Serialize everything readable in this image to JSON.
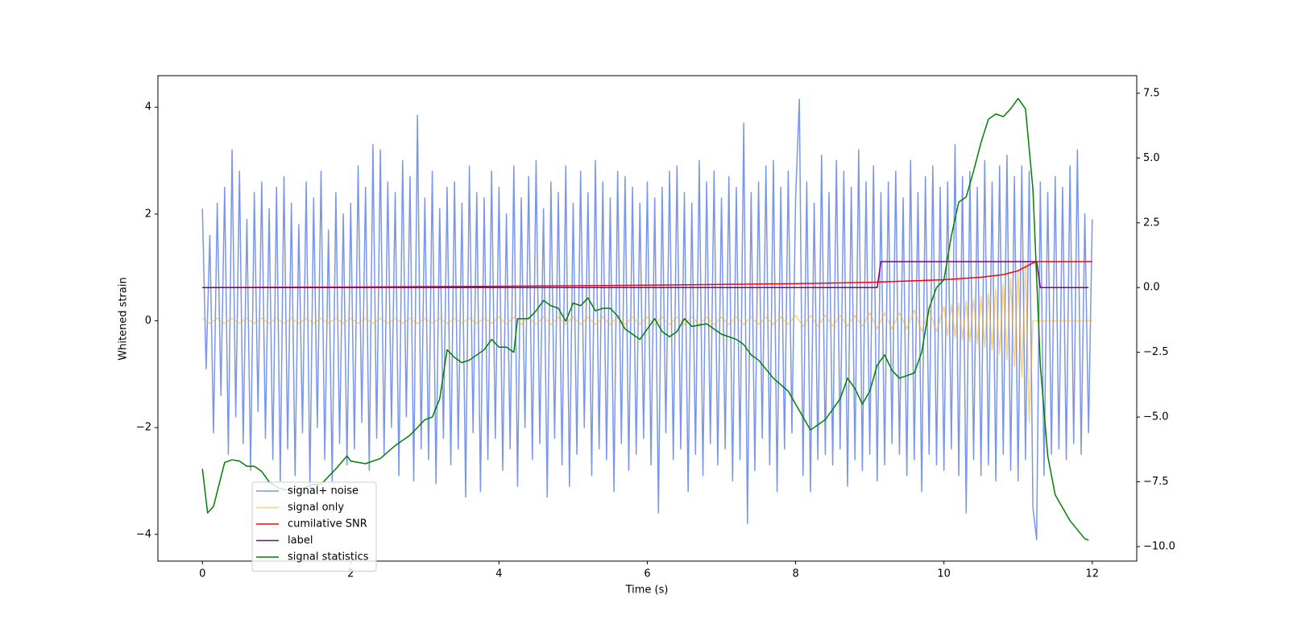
{
  "chart_data": {
    "type": "line",
    "xlabel": "Time (s)",
    "ylabel": "Whitened strain",
    "xlim": [
      -0.6,
      12.6
    ],
    "ylim": [
      -4.5,
      4.59
    ],
    "y2lim": [
      -10.56,
      8.18
    ],
    "xticks": [
      0,
      2,
      4,
      6,
      8,
      10,
      12
    ],
    "yticks": [
      {
        "value": -4,
        "label": "−4"
      },
      {
        "value": -2,
        "label": "−2"
      },
      0,
      2,
      4
    ],
    "y2ticks": [
      {
        "value": -10,
        "label": "−10.0"
      },
      {
        "value": -7.5,
        "label": "−7.5"
      },
      {
        "value": -5,
        "label": "−5.0"
      },
      {
        "value": -2.5,
        "label": "−2.5"
      },
      {
        "value": 0,
        "label": "0.0"
      },
      2.5,
      {
        "value": 5,
        "label": "5.0"
      },
      7.5
    ],
    "grid": false,
    "legend": "lower left",
    "series": [
      {
        "name": "signal+ noise",
        "color": "royalblue",
        "alpha": 0.7,
        "axis": "y",
        "x": [
          0,
          0.05,
          0.1,
          0.15,
          0.2,
          0.25,
          0.3,
          0.35,
          0.4,
          0.45,
          0.5,
          0.55,
          0.6,
          0.65,
          0.7,
          0.75,
          0.8,
          0.85,
          0.9,
          0.95,
          1,
          1.05,
          1.1,
          1.15,
          1.2,
          1.25,
          1.3,
          1.35,
          1.4,
          1.45,
          1.5,
          1.55,
          1.6,
          1.65,
          1.7,
          1.75,
          1.8,
          1.85,
          1.9,
          1.95,
          2,
          2.05,
          2.1,
          2.15,
          2.2,
          2.25,
          2.3,
          2.35,
          2.4,
          2.45,
          2.5,
          2.55,
          2.6,
          2.65,
          2.7,
          2.75,
          2.8,
          2.85,
          2.9,
          2.95,
          3,
          3.05,
          3.1,
          3.15,
          3.2,
          3.25,
          3.3,
          3.35,
          3.4,
          3.45,
          3.5,
          3.55,
          3.6,
          3.65,
          3.7,
          3.75,
          3.8,
          3.85,
          3.9,
          3.95,
          4,
          4.05,
          4.1,
          4.15,
          4.2,
          4.25,
          4.3,
          4.35,
          4.4,
          4.45,
          4.5,
          4.55,
          4.6,
          4.65,
          4.7,
          4.75,
          4.8,
          4.85,
          4.9,
          4.95,
          5,
          5.05,
          5.1,
          5.15,
          5.2,
          5.25,
          5.3,
          5.35,
          5.4,
          5.45,
          5.5,
          5.55,
          5.6,
          5.65,
          5.7,
          5.75,
          5.8,
          5.85,
          5.9,
          5.95,
          6,
          6.05,
          6.1,
          6.15,
          6.2,
          6.25,
          6.3,
          6.35,
          6.4,
          6.45,
          6.5,
          6.55,
          6.6,
          6.65,
          6.7,
          6.75,
          6.8,
          6.85,
          6.9,
          6.95,
          7,
          7.05,
          7.1,
          7.15,
          7.2,
          7.25,
          7.3,
          7.35,
          7.4,
          7.45,
          7.5,
          7.55,
          7.6,
          7.65,
          7.7,
          7.75,
          7.8,
          7.85,
          7.9,
          7.95,
          8,
          8.05,
          8.1,
          8.15,
          8.2,
          8.25,
          8.3,
          8.35,
          8.4,
          8.45,
          8.5,
          8.55,
          8.6,
          8.65,
          8.7,
          8.75,
          8.8,
          8.85,
          8.9,
          8.95,
          9,
          9.05,
          9.1,
          9.15,
          9.2,
          9.25,
          9.3,
          9.35,
          9.4,
          9.45,
          9.5,
          9.55,
          9.6,
          9.65,
          9.7,
          9.75,
          9.8,
          9.85,
          9.9,
          9.95,
          10,
          10.05,
          10.1,
          10.15,
          10.2,
          10.25,
          10.3,
          10.35,
          10.4,
          10.45,
          10.5,
          10.55,
          10.6,
          10.65,
          10.7,
          10.75,
          10.8,
          10.85,
          10.9,
          10.95,
          11,
          11.05,
          11.1,
          11.15,
          11.2,
          11.25,
          11.3,
          11.35,
          11.4,
          11.45,
          11.5,
          11.55,
          11.6,
          11.65,
          11.7,
          11.75,
          11.8,
          11.85,
          11.9,
          11.95,
          12
        ],
        "values": [
          2.1,
          -0.9,
          1.6,
          -2.1,
          2.2,
          -1.4,
          2.5,
          -2.5,
          3.2,
          -1.8,
          2.8,
          -2.3,
          1.9,
          -2.8,
          2.4,
          -1.7,
          2.6,
          -2.2,
          2.1,
          -2.6,
          2.5,
          -3.0,
          2.7,
          -2.4,
          2.2,
          -2.9,
          1.8,
          -2.1,
          2.6,
          -3.1,
          2.3,
          -2.0,
          2.8,
          -2.6,
          1.7,
          -3.0,
          2.4,
          -2.3,
          2.0,
          -2.7,
          2.2,
          -2.4,
          2.9,
          -1.9,
          2.5,
          -2.8,
          3.3,
          -2.2,
          3.2,
          -2.5,
          2.6,
          -2.0,
          2.4,
          -2.9,
          3.0,
          -1.8,
          2.7,
          -3.0,
          3.85,
          -2.4,
          2.3,
          -2.6,
          2.8,
          -3.05,
          2.1,
          -2.2,
          2.5,
          -2.7,
          2.6,
          -2.4,
          2.2,
          -3.3,
          2.9,
          -2.1,
          2.4,
          -3.2,
          2.3,
          -2.6,
          2.8,
          -2.2,
          2.5,
          -2.8,
          2.0,
          -2.4,
          2.9,
          -3.1,
          2.3,
          -2.0,
          2.7,
          -2.6,
          3.0,
          -2.3,
          2.1,
          -3.3,
          2.6,
          -2.2,
          2.4,
          -2.7,
          2.9,
          -3.1,
          2.2,
          -2.5,
          2.8,
          -2.0,
          2.4,
          -2.9,
          3.0,
          -2.4,
          2.6,
          -2.6,
          2.3,
          -3.2,
          2.8,
          -2.3,
          2.7,
          -2.8,
          2.5,
          -2.5,
          2.2,
          -2.2,
          2.6,
          -2.7,
          2.3,
          -3.6,
          2.5,
          -2.1,
          2.8,
          -2.6,
          2.9,
          -2.4,
          2.4,
          -3.2,
          2.2,
          -2.5,
          3.0,
          -2.9,
          2.6,
          -2.3,
          2.8,
          -2.7,
          2.3,
          -2.4,
          2.7,
          -3.0,
          2.5,
          -2.6,
          3.7,
          -3.8,
          2.4,
          -2.8,
          2.6,
          -2.2,
          2.9,
          -2.7,
          3.0,
          -3.2,
          2.5,
          -2.4,
          2.8,
          -2.1,
          2.3,
          4.15,
          -2.9,
          2.6,
          -3.2,
          2.2,
          -2.6,
          3.1,
          -2.5,
          2.4,
          -2.7,
          3.0,
          -2.4,
          2.8,
          -3.1,
          2.5,
          -2.6,
          3.2,
          -2.8,
          2.6,
          -2.5,
          2.9,
          -3.0,
          2.4,
          -2.7,
          2.6,
          -2.3,
          2.8,
          -2.5,
          2.3,
          -2.9,
          3.0,
          -2.6,
          2.4,
          -3.2,
          2.7,
          -2.5,
          2.9,
          -2.7,
          2.5,
          -2.8,
          2.6,
          -2.4,
          3.3,
          -2.9,
          2.7,
          -3.6,
          2.8,
          -2.6,
          2.5,
          -2.9,
          3.0,
          -2.7,
          2.6,
          -3.0,
          2.9,
          -2.5,
          3.1,
          -2.8,
          2.7,
          -3.0,
          2.9,
          -2.6,
          2.8,
          -3.5,
          -4.1,
          2.6,
          -2.9,
          2.4,
          -2.5,
          2.7,
          -2.4,
          2.5,
          -2.6,
          2.9,
          -2.3,
          3.2,
          -2.5,
          2.0,
          -2.1,
          1.9
        ]
      },
      {
        "name": "signal only",
        "color": "orange",
        "alpha": 0.5,
        "axis": "y",
        "x": [
          0,
          0.1,
          0.2,
          0.3,
          0.4,
          0.5,
          0.6,
          0.7,
          0.8,
          0.9,
          1,
          1.1,
          1.2,
          1.3,
          1.4,
          1.5,
          1.6,
          1.7,
          1.8,
          1.9,
          2,
          2.1,
          2.2,
          2.3,
          2.4,
          2.5,
          2.6,
          2.7,
          2.8,
          2.9,
          3,
          3.1,
          3.2,
          3.3,
          3.4,
          3.5,
          3.6,
          3.7,
          3.8,
          3.9,
          4,
          4.1,
          4.2,
          4.3,
          4.4,
          4.5,
          4.6,
          4.7,
          4.8,
          4.9,
          5,
          5.1,
          5.2,
          5.3,
          5.4,
          5.5,
          5.6,
          5.7,
          5.8,
          5.9,
          6,
          6.1,
          6.2,
          6.3,
          6.4,
          6.5,
          6.6,
          6.7,
          6.8,
          6.9,
          7,
          7.1,
          7.2,
          7.3,
          7.4,
          7.5,
          7.6,
          7.7,
          7.8,
          7.9,
          8,
          8.1,
          8.2,
          8.3,
          8.4,
          8.5,
          8.6,
          8.7,
          8.8,
          8.9,
          9,
          9.1,
          9.2,
          9.3,
          9.4,
          9.5,
          9.6,
          9.7,
          9.8,
          9.9,
          10,
          10.05,
          10.1,
          10.15,
          10.2,
          10.25,
          10.3,
          10.35,
          10.4,
          10.45,
          10.5,
          10.55,
          10.6,
          10.65,
          10.7,
          10.75,
          10.8,
          10.85,
          10.9,
          10.95,
          11,
          11.05,
          11.1,
          11.15,
          11.2,
          11.25,
          11.3,
          12
        ],
        "values": [
          0.05,
          -0.05,
          0.05,
          -0.05,
          0.05,
          -0.05,
          0.05,
          -0.05,
          0.05,
          -0.05,
          0.05,
          -0.05,
          0.05,
          -0.05,
          0.05,
          -0.05,
          0.05,
          -0.05,
          0.05,
          -0.05,
          0.05,
          -0.05,
          0.05,
          -0.05,
          0.05,
          -0.05,
          0.05,
          -0.05,
          0.05,
          -0.05,
          0.05,
          -0.05,
          0.05,
          -0.05,
          0.05,
          -0.05,
          0.05,
          -0.05,
          0.05,
          -0.05,
          0.07,
          -0.07,
          0.07,
          -0.07,
          0.07,
          -0.07,
          0.07,
          -0.07,
          0.07,
          -0.07,
          0.07,
          -0.07,
          0.07,
          -0.07,
          0.07,
          -0.07,
          0.07,
          -0.07,
          0.07,
          -0.07,
          0.07,
          -0.07,
          0.07,
          -0.07,
          0.07,
          -0.07,
          0.07,
          -0.07,
          0.07,
          -0.07,
          0.07,
          -0.07,
          0.07,
          -0.07,
          0.07,
          -0.07,
          0.07,
          -0.07,
          0.07,
          -0.07,
          0.1,
          -0.1,
          0.1,
          -0.1,
          0.1,
          -0.1,
          0.1,
          -0.1,
          0.1,
          -0.1,
          0.15,
          -0.15,
          0.15,
          -0.15,
          0.15,
          -0.15,
          0.2,
          -0.2,
          0.2,
          -0.2,
          0.27,
          -0.28,
          0.3,
          -0.31,
          0.33,
          -0.35,
          0.37,
          -0.39,
          0.41,
          -0.43,
          0.46,
          -0.49,
          0.52,
          -0.55,
          0.59,
          -0.63,
          0.68,
          -0.73,
          0.79,
          -0.86,
          0.95,
          -1.05,
          1.1,
          -1.9,
          0,
          0,
          0,
          0
        ]
      },
      {
        "name": "cumilative SNR",
        "color": "red",
        "alpha": 1,
        "axis": "y2",
        "x": [
          0,
          2,
          4,
          6,
          8,
          9,
          10,
          10.5,
          10.8,
          11,
          11.1,
          11.2,
          11.25,
          12
        ],
        "values": [
          0,
          0.02,
          0.05,
          0.09,
          0.15,
          0.2,
          0.3,
          0.4,
          0.5,
          0.65,
          0.8,
          0.95,
          1.0,
          1.0
        ]
      },
      {
        "name": "label",
        "color": "purple",
        "alpha": 1,
        "axis": "y2",
        "x": [
          0,
          9.1,
          9.15,
          11.25,
          11.3,
          11.95
        ],
        "values": [
          0,
          0,
          1,
          1,
          0,
          0
        ]
      },
      {
        "name": "signal statistics",
        "color": "green",
        "alpha": 1,
        "axis": "y2",
        "x": [
          0,
          0.07,
          0.15,
          0.3,
          0.4,
          0.5,
          0.6,
          0.7,
          0.8,
          0.9,
          1,
          1.1,
          1.3,
          1.5,
          1.6,
          1.8,
          1.95,
          2.0,
          2.2,
          2.4,
          2.6,
          2.8,
          2.9,
          3.0,
          3.1,
          3.2,
          3.3,
          3.4,
          3.5,
          3.6,
          3.8,
          3.9,
          4.0,
          4.1,
          4.2,
          4.25,
          4.4,
          4.5,
          4.6,
          4.7,
          4.8,
          4.9,
          5.0,
          5.1,
          5.2,
          5.3,
          5.4,
          5.5,
          5.6,
          5.7,
          5.8,
          5.9,
          6.0,
          6.1,
          6.2,
          6.3,
          6.4,
          6.5,
          6.6,
          6.8,
          7.0,
          7.2,
          7.3,
          7.4,
          7.5,
          7.7,
          7.9,
          8.0,
          8.2,
          8.4,
          8.6,
          8.7,
          8.8,
          8.9,
          9.0,
          9.1,
          9.2,
          9.3,
          9.4,
          9.6,
          9.7,
          9.8,
          9.9,
          10.0,
          10.1,
          10.2,
          10.3,
          10.4,
          10.5,
          10.6,
          10.7,
          10.8,
          10.9,
          11.0,
          11.1,
          11.2,
          11.3,
          11.4,
          11.5,
          11.7,
          11.9,
          11.95
        ],
        "values": [
          -7.0,
          -8.7,
          -8.45,
          -6.75,
          -6.65,
          -6.7,
          -6.9,
          -6.9,
          -7.1,
          -7.5,
          -7.7,
          -7.8,
          -7.8,
          -7.6,
          -7.6,
          -7.0,
          -6.5,
          -6.7,
          -6.8,
          -6.6,
          -6.1,
          -5.7,
          -5.4,
          -5.1,
          -5.0,
          -4.3,
          -2.4,
          -2.7,
          -2.9,
          -2.8,
          -2.4,
          -2.0,
          -2.3,
          -2.3,
          -2.5,
          -1.2,
          -1.2,
          -0.9,
          -0.5,
          -0.7,
          -0.8,
          -1.3,
          -0.6,
          -0.7,
          -0.4,
          -0.9,
          -0.8,
          -0.8,
          -1.1,
          -1.6,
          -1.8,
          -2.0,
          -1.6,
          -1.2,
          -1.7,
          -1.9,
          -1.7,
          -1.2,
          -1.5,
          -1.4,
          -1.8,
          -2.0,
          -2.2,
          -2.6,
          -2.8,
          -3.5,
          -4.0,
          -4.5,
          -5.5,
          -5.1,
          -4.3,
          -3.5,
          -3.9,
          -4.5,
          -4.0,
          -3.0,
          -2.6,
          -3.2,
          -3.5,
          -3.3,
          -2.5,
          -0.8,
          0.0,
          0.3,
          2.0,
          3.3,
          3.5,
          4.5,
          5.6,
          6.5,
          6.7,
          6.6,
          6.9,
          7.3,
          6.9,
          3.8,
          -3.0,
          -6.5,
          -8.0,
          -9.0,
          -9.7,
          -9.75
        ]
      }
    ]
  }
}
